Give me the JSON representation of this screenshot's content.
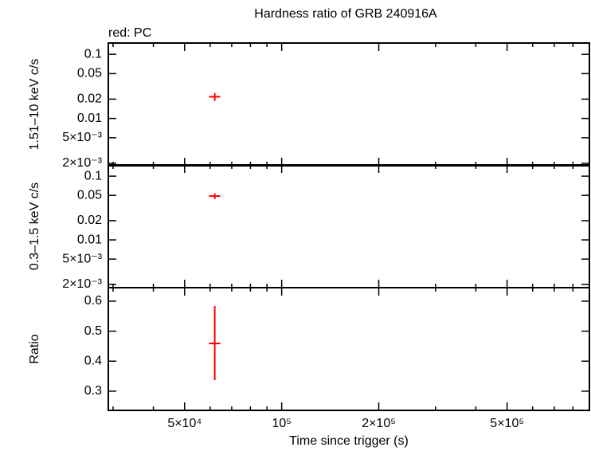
{
  "chart_data": [
    {
      "type": "scatter",
      "title": "Hardness ratio of GRB 240916A",
      "annotation": "red: PC",
      "ylabel": "1.51–10 keV c/s",
      "x_log": true,
      "y_log": true,
      "xlim": [
        29000,
        900000
      ],
      "ylim": [
        0.00183,
        0.15
      ],
      "yticks": [
        0.1,
        0.05,
        0.02,
        0.01,
        {
          "value": 0.005,
          "label": "5×10⁻³"
        },
        {
          "value": 0.002,
          "label": "2×10⁻³"
        }
      ],
      "series": [
        {
          "name": "PC",
          "color": "#ff0000",
          "x": [
            62000
          ],
          "xerr_low": [
            2500
          ],
          "xerr_high": [
            2500
          ],
          "y": [
            0.0218
          ],
          "yerr_low": [
            0.003
          ],
          "yerr_high": [
            0.003
          ]
        }
      ]
    },
    {
      "type": "scatter",
      "ylabel": "0.3–1.5 keV c/s",
      "x_log": true,
      "y_log": true,
      "xlim": [
        29000,
        900000
      ],
      "ylim": [
        0.00178,
        0.15
      ],
      "yticks": [
        0.1,
        0.05,
        0.02,
        0.01,
        {
          "value": 0.005,
          "label": "5×10⁻³"
        },
        {
          "value": 0.002,
          "label": "2×10⁻³"
        }
      ],
      "series": [
        {
          "name": "PC",
          "color": "#ff0000",
          "x": [
            62000
          ],
          "xerr_low": [
            2500
          ],
          "xerr_high": [
            2500
          ],
          "y": [
            0.0487
          ],
          "yerr_low": [
            0.005
          ],
          "yerr_high": [
            0.005
          ]
        }
      ]
    },
    {
      "type": "scatter",
      "ylabel": "Ratio",
      "xlabel": "Time since trigger (s)",
      "x_log": true,
      "y_log": false,
      "xlim": [
        29000,
        900000
      ],
      "ylim": [
        0.236,
        0.645
      ],
      "yticks": [
        0.3,
        0.4,
        0.5,
        0.6
      ],
      "xticks": [
        {
          "value": 50000,
          "label": "5×10⁴"
        },
        {
          "value": 100000,
          "label": "10⁵"
        },
        {
          "value": 200000,
          "label": "2×10⁵"
        },
        {
          "value": 500000,
          "label": "5×10⁵"
        }
      ],
      "xminor": [
        30000,
        40000,
        60000,
        70000,
        80000,
        90000,
        300000,
        400000,
        600000,
        700000,
        800000,
        900000
      ],
      "series": [
        {
          "name": "PC",
          "color": "#ff0000",
          "x": [
            62000
          ],
          "xerr_low": [
            2500
          ],
          "xerr_high": [
            2500
          ],
          "y": [
            0.459
          ],
          "yerr_low": [
            0.122
          ],
          "yerr_high": [
            0.125
          ]
        }
      ]
    }
  ]
}
